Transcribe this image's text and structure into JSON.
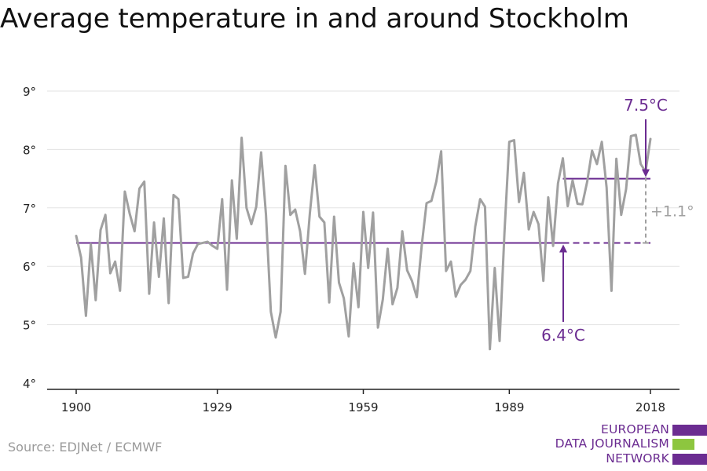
{
  "title": "Average temperature in and around Stockholm",
  "source": "Source: EDJNet / ECMWF",
  "logo": {
    "lines": [
      "EUROPEAN",
      "DATA JOURNALISM",
      "NETWORK"
    ],
    "colors": [
      "#6b2c91",
      "#8dc63f",
      "#6b2c91"
    ]
  },
  "colors": {
    "series": "#a0a0a0",
    "accent": "#6b2c91",
    "grid": "#e3e3e3",
    "axis": "#222222",
    "diff": "#a0a0a0"
  },
  "chart_data": {
    "type": "line",
    "title": "Average temperature in and around Stockholm",
    "xlabel": "",
    "ylabel": "",
    "xlim": [
      1900,
      2018
    ],
    "ylim": [
      4,
      9
    ],
    "yticks": [
      4,
      5,
      6,
      7,
      8,
      9
    ],
    "ytick_labels": [
      "4°",
      "5°",
      "6°",
      "7°",
      "8°",
      "9°"
    ],
    "xticks": [
      1900,
      1929,
      1959,
      1989,
      2018
    ],
    "xtick_labels": [
      "1900",
      "1929",
      "1959",
      "1989",
      "2018"
    ],
    "grid": "horizontal",
    "series": [
      {
        "x": [
          1900,
          1901,
          1902,
          1903,
          1904,
          1905,
          1906,
          1907,
          1908,
          1909,
          1910,
          1911,
          1912,
          1913,
          1914,
          1915,
          1916,
          1917,
          1918,
          1919,
          1920,
          1921,
          1922,
          1923,
          1924,
          1925,
          1926,
          1927,
          1928,
          1929,
          1930,
          1931,
          1932,
          1933,
          1934,
          1935,
          1936,
          1937,
          1938,
          1939,
          1940,
          1941,
          1942,
          1943,
          1944,
          1945,
          1946,
          1947,
          1948,
          1949,
          1950,
          1951,
          1952,
          1953,
          1954,
          1955,
          1956,
          1957,
          1958,
          1959,
          1960,
          1961,
          1962,
          1963,
          1964,
          1965,
          1966,
          1967,
          1968,
          1969,
          1970,
          1971,
          1972,
          1973,
          1974,
          1975,
          1976,
          1977,
          1978,
          1979,
          1980,
          1981,
          1982,
          1983,
          1984,
          1985,
          1986,
          1987,
          1988,
          1989,
          1990,
          1991,
          1992,
          1993,
          1994,
          1995,
          1996,
          1997,
          1998,
          1999,
          2000,
          2001,
          2002,
          2003,
          2004,
          2005,
          2006,
          2007,
          2008,
          2009,
          2010,
          2011,
          2012,
          2013,
          2014,
          2015,
          2016,
          2017,
          2018
        ],
        "y": [
          6.52,
          6.15,
          5.15,
          6.38,
          5.42,
          6.62,
          6.88,
          5.88,
          6.08,
          5.58,
          7.28,
          6.9,
          6.6,
          7.33,
          7.45,
          5.53,
          6.75,
          5.82,
          6.82,
          5.37,
          7.22,
          7.15,
          5.8,
          5.82,
          6.22,
          6.38,
          6.4,
          6.42,
          6.35,
          6.3,
          7.15,
          5.6,
          7.47,
          6.47,
          8.2,
          7.0,
          6.72,
          7.02,
          7.95,
          6.88,
          5.22,
          4.78,
          5.22,
          7.72,
          6.88,
          6.97,
          6.6,
          5.87,
          6.9,
          7.73,
          6.85,
          6.75,
          5.38,
          6.85,
          5.72,
          5.45,
          4.8,
          6.05,
          5.3,
          6.93,
          5.97,
          6.92,
          4.95,
          5.43,
          6.3,
          5.35,
          5.63,
          6.6,
          5.93,
          5.75,
          5.47,
          6.35,
          7.08,
          7.12,
          7.45,
          7.97,
          5.92,
          6.08,
          5.48,
          5.68,
          5.77,
          5.92,
          6.68,
          7.15,
          7.02,
          4.58,
          5.97,
          4.72,
          6.58,
          8.13,
          8.16,
          7.1,
          7.6,
          6.63,
          6.93,
          6.72,
          5.75,
          7.18,
          6.35,
          7.42,
          7.85,
          7.03,
          7.47,
          7.07,
          7.06,
          7.45,
          7.98,
          7.75,
          8.13,
          7.35,
          5.58,
          7.84,
          6.88,
          7.32,
          8.23,
          8.25,
          7.75,
          7.62,
          8.18
        ]
      }
    ],
    "reference_lines": [
      {
        "label": "6.4°C",
        "value": 6.4,
        "x_start": 1900,
        "x_end": 2018,
        "dashed_from": 2000
      },
      {
        "label": "7.5°C",
        "value": 7.5,
        "x_start": 2000,
        "x_end": 2018
      }
    ],
    "annotations": [
      {
        "text": "7.5°C",
        "color": "#6b2c91"
      },
      {
        "text": "6.4°C",
        "color": "#6b2c91"
      },
      {
        "text": "+1.1°",
        "color": "#a0a0a0"
      }
    ]
  }
}
